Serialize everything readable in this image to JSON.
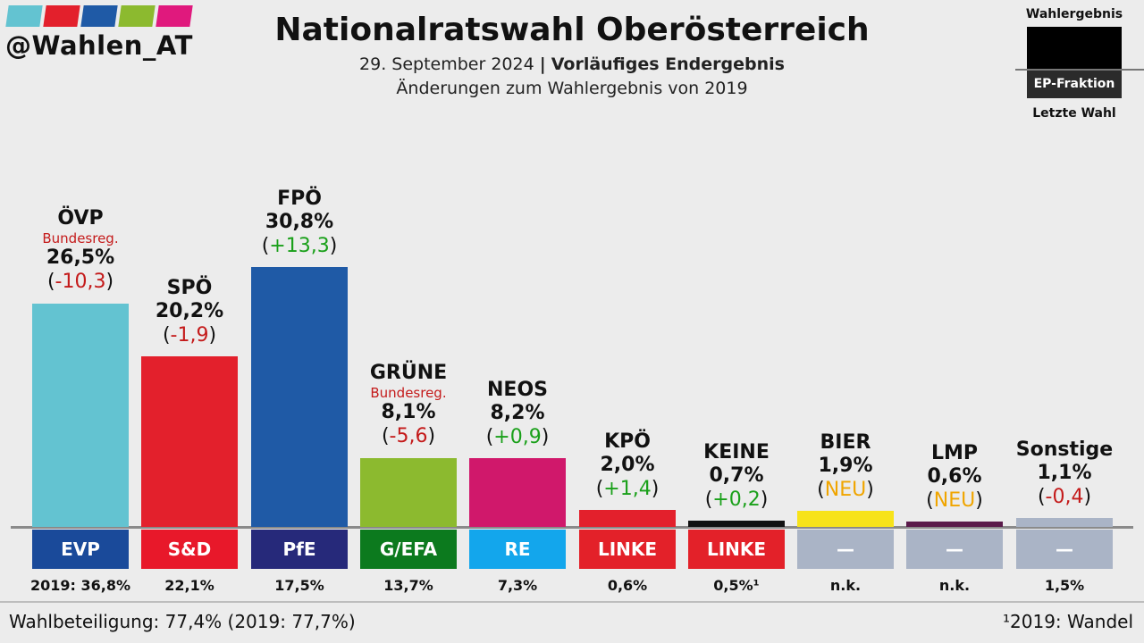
{
  "logo": {
    "handle": "@Wahlen_AT",
    "colors": [
      "#63c3d1",
      "#e3202c",
      "#1f5aa6",
      "#8cba2f",
      "#e0197d"
    ]
  },
  "header": {
    "title": "Nationalratswahl Oberösterreich",
    "date": "29. September 2024",
    "separator": "|",
    "status": "Vorläufiges Endergebnis",
    "subtitle": "Änderungen zum Wahlergebnis von 2019"
  },
  "legend": {
    "top": "Wahlergebnis",
    "middle": "EP-Fraktion",
    "bottom": "Letzte Wahl"
  },
  "chart_data": {
    "type": "bar",
    "title": "Nationalratswahl Oberösterreich",
    "unit": "%",
    "categories": [
      "ÖVP",
      "SPÖ",
      "FPÖ",
      "GRÜNE",
      "NEOS",
      "KPÖ",
      "KEINE",
      "BIER",
      "LMP",
      "Sonstige"
    ],
    "values": [
      26.5,
      20.2,
      30.8,
      8.1,
      8.2,
      2.0,
      0.7,
      1.9,
      0.6,
      1.1
    ],
    "bars": [
      {
        "party": "ÖVP",
        "value": 26.5,
        "value_label": "26,5%",
        "gov": "Bundesreg.",
        "change": "-10,3",
        "change_type": "neg",
        "fraction": "EVP",
        "color": "#63c3d1",
        "fraction_color": "#1a4a9a",
        "last": "2019: 36,8%"
      },
      {
        "party": "SPÖ",
        "value": 20.2,
        "value_label": "20,2%",
        "gov": "",
        "change": "-1,9",
        "change_type": "neg",
        "fraction": "S&D",
        "color": "#e3202c",
        "fraction_color": "#e8182a",
        "last": "22,1%"
      },
      {
        "party": "FPÖ",
        "value": 30.8,
        "value_label": "30,8%",
        "gov": "",
        "change": "+13,3",
        "change_type": "pos",
        "fraction": "PfE",
        "color": "#1f5aa6",
        "fraction_color": "#26297a",
        "last": "17,5%"
      },
      {
        "party": "GRÜNE",
        "value": 8.1,
        "value_label": "8,1%",
        "gov": "Bundesreg.",
        "change": "-5,6",
        "change_type": "neg",
        "fraction": "G/EFA",
        "color": "#8cba2f",
        "fraction_color": "#0c7a1e",
        "last": "13,7%"
      },
      {
        "party": "NEOS",
        "value": 8.2,
        "value_label": "8,2%",
        "gov": "",
        "change": "+0,9",
        "change_type": "pos",
        "fraction": "RE",
        "color": "#d0186b",
        "fraction_color": "#13a6ec",
        "last": "7,3%"
      },
      {
        "party": "KPÖ",
        "value": 2.0,
        "value_label": "2,0%",
        "gov": "",
        "change": "+1,4",
        "change_type": "pos",
        "fraction": "LINKE",
        "color": "#e3202c",
        "fraction_color": "#e32129",
        "last": "0,6%"
      },
      {
        "party": "KEINE",
        "value": 0.7,
        "value_label": "0,7%",
        "gov": "",
        "change": "+0,2",
        "change_type": "pos",
        "fraction": "LINKE",
        "color": "#111111",
        "fraction_color": "#e32129",
        "last": "0,5%¹"
      },
      {
        "party": "BIER",
        "value": 1.9,
        "value_label": "1,9%",
        "gov": "",
        "change": "NEU",
        "change_type": "new",
        "fraction": "—",
        "color": "#f7e31a",
        "fraction_color": "#aab4c6",
        "last": "n.k."
      },
      {
        "party": "LMP",
        "value": 0.6,
        "value_label": "0,6%",
        "gov": "",
        "change": "NEU",
        "change_type": "new",
        "fraction": "—",
        "color": "#5a1a4a",
        "fraction_color": "#aab4c6",
        "last": "n.k."
      },
      {
        "party": "Sonstige",
        "value": 1.1,
        "value_label": "1,1%",
        "gov": "",
        "change": "-0,4",
        "change_type": "neg",
        "fraction": "—",
        "color": "#aab4c6",
        "fraction_color": "#aab4c6",
        "last": "1,5%"
      }
    ],
    "change_colors": {
      "neg": "#c41a1a",
      "pos": "#1aa01a",
      "new": "#f0a500"
    }
  },
  "footer": {
    "turnout": "Wahlbeteiligung: 77,4% (2019: 77,7%)",
    "footnote": "¹2019: Wandel"
  }
}
